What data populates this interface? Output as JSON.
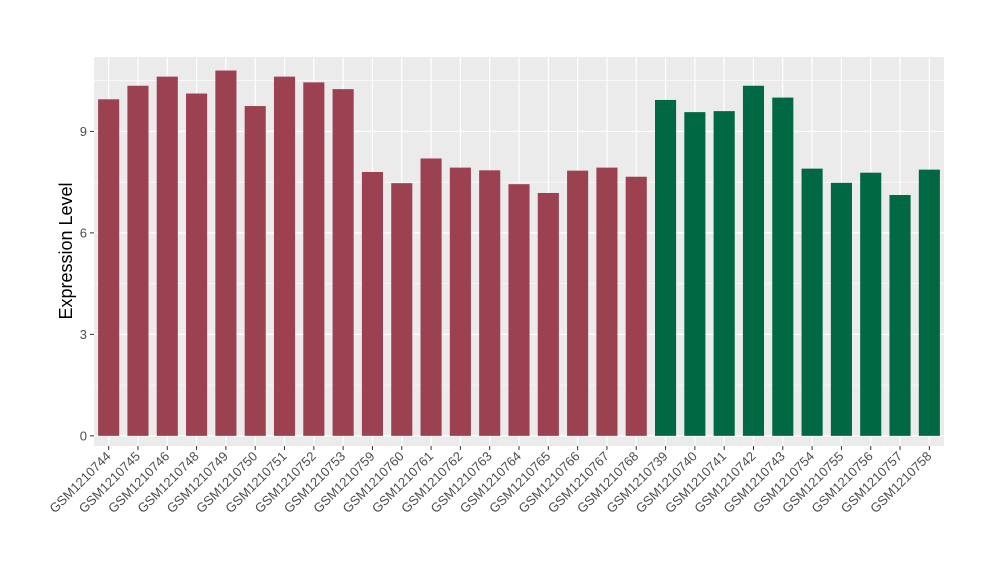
{
  "chart_data": {
    "type": "bar",
    "title": "",
    "xlabel": "",
    "ylabel": "Expression Level",
    "ylim": [
      -0.3,
      11.2
    ],
    "yticks": [
      0,
      3,
      6,
      9
    ],
    "grid": true,
    "legend": "none",
    "categories": [
      "GSM1210744",
      "GSM1210745",
      "GSM1210746",
      "GSM1210748",
      "GSM1210749",
      "GSM1210750",
      "GSM1210751",
      "GSM1210752",
      "GSM1210753",
      "GSM1210759",
      "GSM1210760",
      "GSM1210761",
      "GSM1210762",
      "GSM1210763",
      "GSM1210764",
      "GSM1210765",
      "GSM1210766",
      "GSM1210767",
      "GSM1210768",
      "GSM1210739",
      "GSM1210740",
      "GSM1210741",
      "GSM1210742",
      "GSM1210743",
      "GSM1210754",
      "GSM1210755",
      "GSM1210756",
      "GSM1210757",
      "GSM1210758"
    ],
    "values": [
      9.95,
      10.35,
      10.62,
      10.12,
      10.8,
      9.75,
      10.62,
      10.45,
      10.25,
      7.8,
      7.47,
      8.2,
      7.93,
      7.85,
      7.44,
      7.18,
      7.84,
      7.93,
      7.66,
      9.93,
      9.57,
      9.6,
      10.35,
      10.0,
      7.9,
      7.48,
      7.78,
      7.12,
      7.87
    ],
    "bar_colors": [
      "#9b4150",
      "#9b4150",
      "#9b4150",
      "#9b4150",
      "#9b4150",
      "#9b4150",
      "#9b4150",
      "#9b4150",
      "#9b4150",
      "#9b4150",
      "#9b4150",
      "#9b4150",
      "#9b4150",
      "#9b4150",
      "#9b4150",
      "#9b4150",
      "#9b4150",
      "#9b4150",
      "#9b4150",
      "#006843",
      "#006843",
      "#006843",
      "#006843",
      "#006843",
      "#006843",
      "#006843",
      "#006843",
      "#006843",
      "#006843"
    ],
    "panel_background": "#ebebeb",
    "gridline_color": "#ffffff"
  }
}
